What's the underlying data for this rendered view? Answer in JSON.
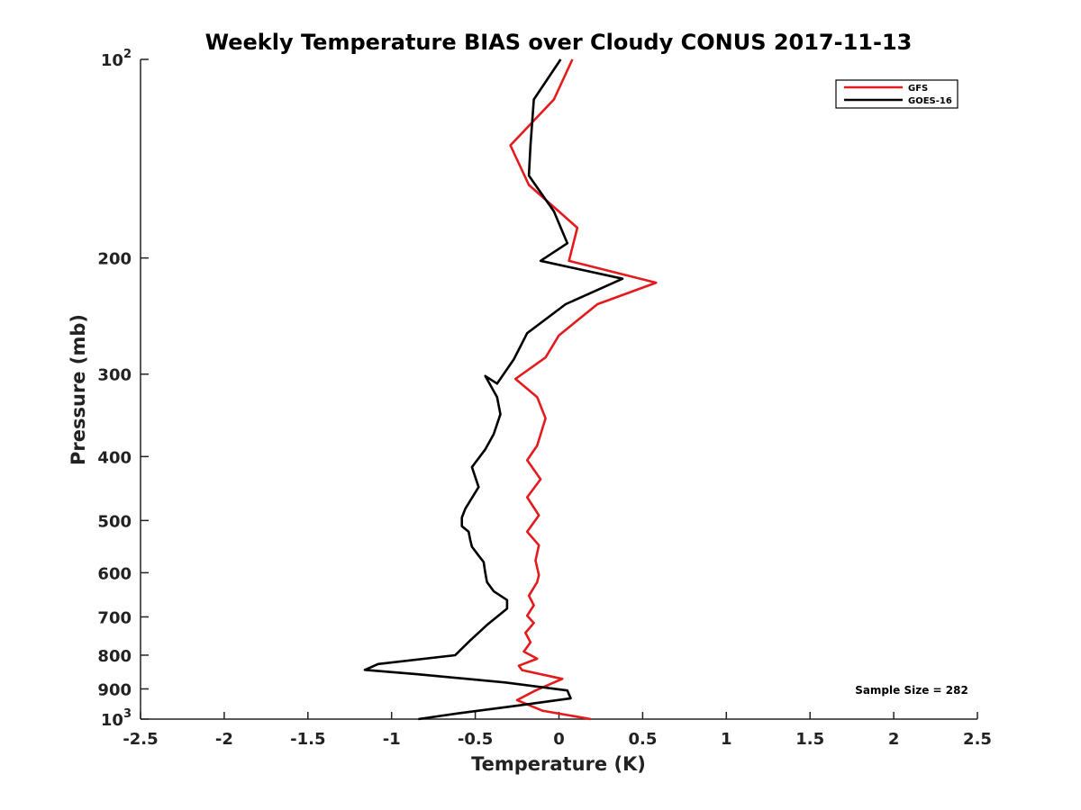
{
  "chart_data": {
    "type": "line",
    "title": "Weekly Temperature BIAS over Cloudy CONUS 2017-11-13",
    "xlabel": "Temperature (K)",
    "ylabel": "Pressure (mb)",
    "xlim": [
      -2.5,
      2.5
    ],
    "ylim": [
      1000,
      100
    ],
    "y_scale": "log",
    "y_reversed": true,
    "x_ticks": [
      {
        "v": -2.5,
        "label": "-2.5"
      },
      {
        "v": -2,
        "label": "-2"
      },
      {
        "v": -1.5,
        "label": "-1.5"
      },
      {
        "v": -1,
        "label": "-1"
      },
      {
        "v": -0.5,
        "label": "-0.5"
      },
      {
        "v": 0,
        "label": "0"
      },
      {
        "v": 0.5,
        "label": "0.5"
      },
      {
        "v": 1,
        "label": "1"
      },
      {
        "v": 1.5,
        "label": "1.5"
      },
      {
        "v": 2,
        "label": "2"
      },
      {
        "v": 2.5,
        "label": "2.5"
      }
    ],
    "y_ticks": [
      {
        "v": 100,
        "label": "10",
        "sup": "2"
      },
      {
        "v": 200,
        "label": "200"
      },
      {
        "v": 300,
        "label": "300"
      },
      {
        "v": 400,
        "label": "400"
      },
      {
        "v": 500,
        "label": "500"
      },
      {
        "v": 600,
        "label": "600"
      },
      {
        "v": 700,
        "label": "700"
      },
      {
        "v": 800,
        "label": "800"
      },
      {
        "v": 900,
        "label": "900"
      },
      {
        "v": 1000,
        "label": "10",
        "sup": "3"
      }
    ],
    "grid": false,
    "legend_position": "top-right",
    "series": [
      {
        "name": "GFS",
        "color": "#e41a1c",
        "x": [
          0.08,
          -0.03,
          -0.29,
          -0.18,
          0.11,
          0.06,
          0.58,
          0.23,
          0.0,
          -0.08,
          -0.26,
          -0.13,
          -0.08,
          -0.13,
          -0.19,
          -0.11,
          -0.19,
          -0.12,
          -0.19,
          -0.12,
          -0.14,
          -0.12,
          -0.13,
          -0.18,
          -0.15,
          -0.19,
          -0.15,
          -0.2,
          -0.17,
          -0.21,
          -0.13,
          -0.24,
          -0.22,
          0.02,
          -0.14,
          -0.25,
          -0.1,
          0.19
        ],
        "y": [
          100,
          115,
          135,
          155,
          180,
          202,
          218,
          235,
          262,
          283,
          305,
          325,
          350,
          385,
          405,
          433,
          461,
          491,
          520,
          545,
          575,
          605,
          620,
          650,
          672,
          697,
          715,
          740,
          765,
          790,
          810,
          830,
          843,
          869,
          905,
          936,
          971,
          1000
        ]
      },
      {
        "name": "GOES-16",
        "color": "#000000",
        "x": [
          0.01,
          -0.15,
          -0.17,
          -0.18,
          -0.03,
          0.05,
          -0.11,
          0.38,
          0.04,
          -0.19,
          -0.27,
          -0.37,
          -0.44,
          -0.37,
          -0.35,
          -0.39,
          -0.44,
          -0.52,
          -0.48,
          -0.56,
          -0.58,
          -0.58,
          -0.54,
          -0.53,
          -0.52,
          -0.48,
          -0.45,
          -0.44,
          -0.43,
          -0.39,
          -0.31,
          -0.31,
          -0.43,
          -0.53,
          -0.62,
          -1.08,
          -1.16,
          -0.85,
          -0.32,
          0.05,
          0.07,
          -0.26,
          -0.6,
          -0.84
        ],
        "y": [
          100,
          115,
          135,
          150,
          170,
          190,
          202,
          215,
          235,
          260,
          285,
          310,
          302,
          325,
          345,
          370,
          390,
          415,
          445,
          480,
          495,
          510,
          520,
          535,
          548,
          565,
          578,
          600,
          620,
          640,
          660,
          680,
          720,
          760,
          800,
          825,
          842,
          855,
          880,
          905,
          930,
          955,
          980,
          1000
        ]
      }
    ],
    "annotation": "Sample Size = 282"
  }
}
